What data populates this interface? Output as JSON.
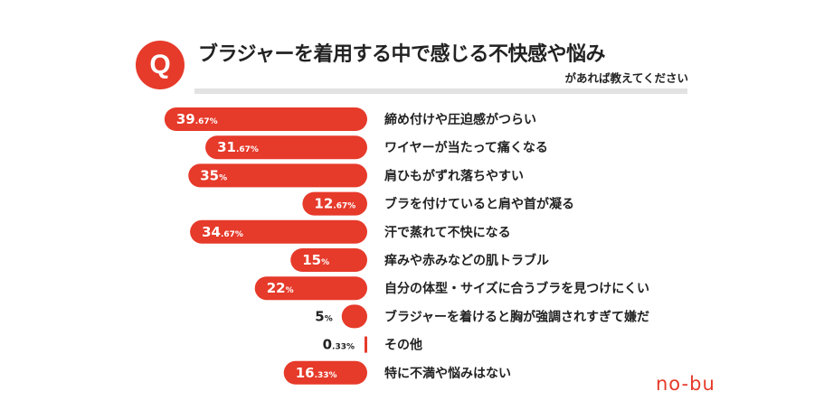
{
  "header": {
    "badge": "Q",
    "title": "ブラジャーを着用する中で感じる不快感や悩み",
    "subtitle": "があれば教えてください"
  },
  "logo": "no-bu",
  "accent_color": "#e63a2a",
  "chart_data": {
    "type": "bar",
    "orientation": "horizontal",
    "categories": [
      "締め付けや圧迫感がつらい",
      "ワイヤーが当たって痛くなる",
      "肩ひもがずれ落ちやすい",
      "ブラを付けていると肩や首が凝る",
      "汗で蒸れて不快になる",
      "痒みや赤みなどの肌トラブル",
      "自分の体型・サイズに合うブラを見つけにくい",
      "ブラジャーを着けると胸が強調されすぎて嫌だ",
      "その他",
      "特に不満や悩みはない"
    ],
    "values": [
      39.67,
      31.67,
      35,
      12.67,
      34.67,
      15,
      22,
      5,
      0.33,
      16.33
    ],
    "labels": [
      {
        "main": "39",
        "dec": ".67%"
      },
      {
        "main": "31",
        "dec": ".67%"
      },
      {
        "main": "35",
        "dec": "%"
      },
      {
        "main": "12",
        "dec": ".67%"
      },
      {
        "main": "34",
        "dec": ".67%"
      },
      {
        "main": "15",
        "dec": "%"
      },
      {
        "main": "22",
        "dec": "%"
      },
      {
        "main": "5",
        "dec": "%"
      },
      {
        "main": "0",
        "dec": ".33%"
      },
      {
        "main": "16",
        "dec": ".33%"
      }
    ],
    "xlim": [
      0,
      40
    ],
    "grid": false,
    "legend": "none",
    "bar_direction": "right-to-left",
    "bar_color": "#e63a2a"
  }
}
